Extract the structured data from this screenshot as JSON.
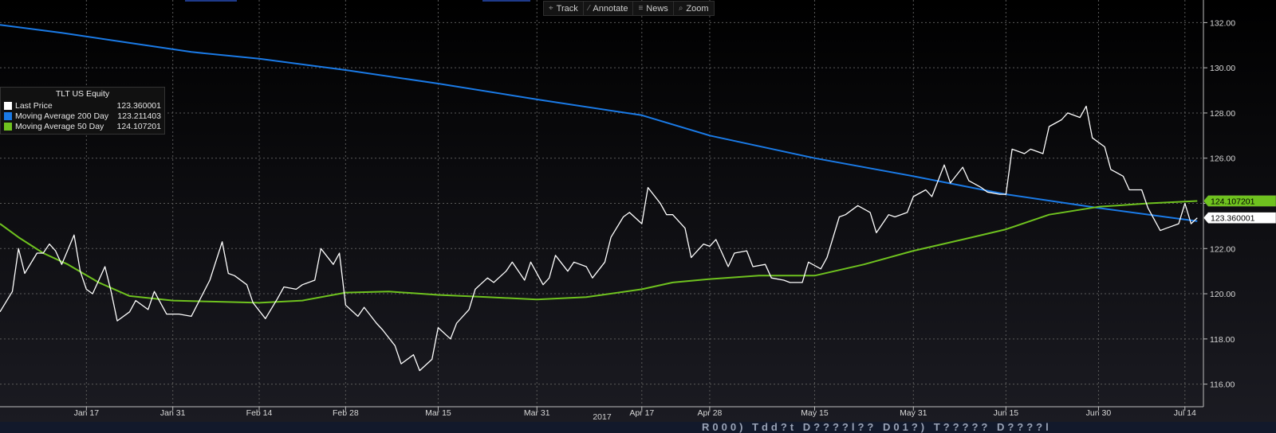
{
  "toolbar": {
    "track": {
      "label": "Track",
      "icon": "crosshair-icon"
    },
    "annotate": {
      "label": "Annotate",
      "icon": "pencil-icon"
    },
    "news": {
      "label": "News",
      "icon": "list-icon"
    },
    "zoom": {
      "label": "Zoom",
      "icon": "magnifier-icon"
    }
  },
  "legend": {
    "title": "TLT US Equity",
    "rows": [
      {
        "name": "Last Price",
        "value": "123.360001",
        "color": "#ffffff"
      },
      {
        "name": "Moving Average 200 Day",
        "value": "123.211403",
        "color": "#1a7ae6"
      },
      {
        "name": "Moving Average 50 Day",
        "value": "124.107201",
        "color": "#6fc21f"
      }
    ]
  },
  "footer_text": "R000) Tdd?t  D????l??  D01?)  T????? D????l",
  "chart_data": {
    "type": "line",
    "title": "TLT US Equity",
    "xlabel": "2017",
    "ylabel": "",
    "ylim": [
      115,
      133
    ],
    "xlim": [
      "2017-01-03",
      "2017-07-17"
    ],
    "y_axis_side": "right",
    "grid": true,
    "legend_placement": "top-left",
    "x_tick_labels": [
      {
        "label": "Jan 17",
        "date": "2017-01-17"
      },
      {
        "label": "Jan 31",
        "date": "2017-01-31"
      },
      {
        "label": "Feb 14",
        "date": "2017-02-14"
      },
      {
        "label": "Feb 28",
        "date": "2017-02-28"
      },
      {
        "label": "Mar 15",
        "date": "2017-03-15"
      },
      {
        "label": "Mar 31",
        "date": "2017-03-31"
      },
      {
        "label": "Apr 17",
        "date": "2017-04-17"
      },
      {
        "label": "Apr 28",
        "date": "2017-04-28"
      },
      {
        "label": "May 15",
        "date": "2017-05-15"
      },
      {
        "label": "May 31",
        "date": "2017-05-31"
      },
      {
        "label": "Jun 15",
        "date": "2017-06-15"
      },
      {
        "label": "Jun 30",
        "date": "2017-06-30"
      },
      {
        "label": "Jul 14",
        "date": "2017-07-14"
      }
    ],
    "y_ticks": [
      "116.00",
      "118.00",
      "120.00",
      "122.00",
      "124.00",
      "126.00",
      "128.00",
      "130.00",
      "132.00"
    ],
    "last_value_tags": [
      {
        "series": "Moving Average 50 Day",
        "label": "124.107201",
        "value": 124.107201,
        "bg": "#6fc21f",
        "fg": "#000000"
      },
      {
        "series": "Last Price",
        "label": "123.360001",
        "value": 123.360001,
        "bg": "#ffffff",
        "fg": "#000000"
      }
    ],
    "series": [
      {
        "name": "Last Price",
        "color": "#ffffff",
        "points": [
          [
            "2017-01-03",
            119.2
          ],
          [
            "2017-01-05",
            120.1
          ],
          [
            "2017-01-06",
            122.0
          ],
          [
            "2017-01-07",
            120.9
          ],
          [
            "2017-01-09",
            121.8
          ],
          [
            "2017-01-10",
            121.8
          ],
          [
            "2017-01-11",
            122.2
          ],
          [
            "2017-01-12",
            121.9
          ],
          [
            "2017-01-13",
            121.3
          ],
          [
            "2017-01-15",
            122.6
          ],
          [
            "2017-01-16",
            121.0
          ],
          [
            "2017-01-17",
            120.2
          ],
          [
            "2017-01-18",
            120.0
          ],
          [
            "2017-01-20",
            121.2
          ],
          [
            "2017-01-21",
            120.1
          ],
          [
            "2017-01-22",
            118.8
          ],
          [
            "2017-01-24",
            119.2
          ],
          [
            "2017-01-25",
            119.7
          ],
          [
            "2017-01-27",
            119.3
          ],
          [
            "2017-01-28",
            120.1
          ],
          [
            "2017-01-30",
            119.1
          ],
          [
            "2017-02-01",
            119.1
          ],
          [
            "2017-02-03",
            119.0
          ],
          [
            "2017-02-06",
            120.6
          ],
          [
            "2017-02-08",
            122.3
          ],
          [
            "2017-02-09",
            120.9
          ],
          [
            "2017-02-10",
            120.8
          ],
          [
            "2017-02-12",
            120.4
          ],
          [
            "2017-02-13",
            119.6
          ],
          [
            "2017-02-15",
            118.9
          ],
          [
            "2017-02-17",
            119.8
          ],
          [
            "2017-02-18",
            120.3
          ],
          [
            "2017-02-20",
            120.2
          ],
          [
            "2017-02-21",
            120.4
          ],
          [
            "2017-02-23",
            120.6
          ],
          [
            "2017-02-24",
            122.0
          ],
          [
            "2017-02-26",
            121.3
          ],
          [
            "2017-02-27",
            121.8
          ],
          [
            "2017-02-28",
            119.5
          ],
          [
            "2017-03-02",
            119.0
          ],
          [
            "2017-03-03",
            119.4
          ],
          [
            "2017-03-05",
            118.7
          ],
          [
            "2017-03-06",
            118.4
          ],
          [
            "2017-03-08",
            117.7
          ],
          [
            "2017-03-09",
            116.9
          ],
          [
            "2017-03-11",
            117.3
          ],
          [
            "2017-03-12",
            116.6
          ],
          [
            "2017-03-14",
            117.1
          ],
          [
            "2017-03-15",
            118.5
          ],
          [
            "2017-03-17",
            118.0
          ],
          [
            "2017-03-18",
            118.7
          ],
          [
            "2017-03-20",
            119.3
          ],
          [
            "2017-03-21",
            120.2
          ],
          [
            "2017-03-23",
            120.7
          ],
          [
            "2017-03-24",
            120.5
          ],
          [
            "2017-03-26",
            121.0
          ],
          [
            "2017-03-27",
            121.4
          ],
          [
            "2017-03-29",
            120.6
          ],
          [
            "2017-03-30",
            121.4
          ],
          [
            "2017-04-01",
            120.4
          ],
          [
            "2017-04-02",
            120.7
          ],
          [
            "2017-04-03",
            121.7
          ],
          [
            "2017-04-05",
            121.0
          ],
          [
            "2017-04-06",
            121.4
          ],
          [
            "2017-04-08",
            121.2
          ],
          [
            "2017-04-09",
            120.7
          ],
          [
            "2017-04-11",
            121.4
          ],
          [
            "2017-04-12",
            122.5
          ],
          [
            "2017-04-14",
            123.4
          ],
          [
            "2017-04-15",
            123.6
          ],
          [
            "2017-04-17",
            123.1
          ],
          [
            "2017-04-18",
            124.7
          ],
          [
            "2017-04-20",
            124.0
          ],
          [
            "2017-04-21",
            123.5
          ],
          [
            "2017-04-22",
            123.5
          ],
          [
            "2017-04-24",
            122.9
          ],
          [
            "2017-04-25",
            121.6
          ],
          [
            "2017-04-27",
            122.2
          ],
          [
            "2017-04-28",
            122.1
          ],
          [
            "2017-04-29",
            122.4
          ],
          [
            "2017-05-01",
            121.2
          ],
          [
            "2017-05-02",
            121.8
          ],
          [
            "2017-05-04",
            121.9
          ],
          [
            "2017-05-05",
            121.2
          ],
          [
            "2017-05-07",
            121.3
          ],
          [
            "2017-05-08",
            120.7
          ],
          [
            "2017-05-10",
            120.6
          ],
          [
            "2017-05-11",
            120.5
          ],
          [
            "2017-05-13",
            120.5
          ],
          [
            "2017-05-14",
            121.4
          ],
          [
            "2017-05-16",
            121.1
          ],
          [
            "2017-05-17",
            121.6
          ],
          [
            "2017-05-19",
            123.4
          ],
          [
            "2017-05-20",
            123.5
          ],
          [
            "2017-05-22",
            123.9
          ],
          [
            "2017-05-24",
            123.6
          ],
          [
            "2017-05-25",
            122.7
          ],
          [
            "2017-05-27",
            123.5
          ],
          [
            "2017-05-28",
            123.4
          ],
          [
            "2017-05-30",
            123.6
          ],
          [
            "2017-05-31",
            124.3
          ],
          [
            "2017-06-02",
            124.6
          ],
          [
            "2017-06-03",
            124.3
          ],
          [
            "2017-06-05",
            125.7
          ],
          [
            "2017-06-06",
            124.9
          ],
          [
            "2017-06-08",
            125.6
          ],
          [
            "2017-06-09",
            125.0
          ],
          [
            "2017-06-11",
            124.7
          ],
          [
            "2017-06-12",
            124.5
          ],
          [
            "2017-06-14",
            124.4
          ],
          [
            "2017-06-15",
            124.4
          ],
          [
            "2017-06-16",
            126.4
          ],
          [
            "2017-06-18",
            126.2
          ],
          [
            "2017-06-19",
            126.4
          ],
          [
            "2017-06-21",
            126.2
          ],
          [
            "2017-06-22",
            127.4
          ],
          [
            "2017-06-24",
            127.7
          ],
          [
            "2017-06-25",
            128.0
          ],
          [
            "2017-06-27",
            127.8
          ],
          [
            "2017-06-28",
            128.3
          ],
          [
            "2017-06-29",
            126.9
          ],
          [
            "2017-07-01",
            126.5
          ],
          [
            "2017-07-02",
            125.5
          ],
          [
            "2017-07-04",
            125.2
          ],
          [
            "2017-07-05",
            124.6
          ],
          [
            "2017-07-07",
            124.6
          ],
          [
            "2017-07-08",
            123.8
          ],
          [
            "2017-07-10",
            122.8
          ],
          [
            "2017-07-11",
            122.9
          ],
          [
            "2017-07-13",
            123.1
          ],
          [
            "2017-07-14",
            124.0
          ],
          [
            "2017-07-15",
            123.1
          ],
          [
            "2017-07-16",
            123.36
          ]
        ]
      },
      {
        "name": "Moving Average 200 Day",
        "color": "#1a7ae6",
        "points": [
          [
            "2017-01-03",
            131.9
          ],
          [
            "2017-01-13",
            131.55
          ],
          [
            "2017-01-24",
            131.1
          ],
          [
            "2017-02-03",
            130.7
          ],
          [
            "2017-02-14",
            130.4
          ],
          [
            "2017-02-28",
            129.9
          ],
          [
            "2017-03-15",
            129.3
          ],
          [
            "2017-03-31",
            128.6
          ],
          [
            "2017-04-17",
            127.9
          ],
          [
            "2017-04-28",
            127.0
          ],
          [
            "2017-05-15",
            126.0
          ],
          [
            "2017-05-31",
            125.2
          ],
          [
            "2017-06-15",
            124.4
          ],
          [
            "2017-06-30",
            123.8
          ],
          [
            "2017-07-16",
            123.21
          ]
        ]
      },
      {
        "name": "Moving Average 50 Day",
        "color": "#6fc21f",
        "points": [
          [
            "2017-01-03",
            123.1
          ],
          [
            "2017-01-06",
            122.5
          ],
          [
            "2017-01-10",
            121.8
          ],
          [
            "2017-01-14",
            121.3
          ],
          [
            "2017-01-19",
            120.5
          ],
          [
            "2017-01-24",
            119.9
          ],
          [
            "2017-01-31",
            119.7
          ],
          [
            "2017-02-07",
            119.65
          ],
          [
            "2017-02-14",
            119.6
          ],
          [
            "2017-02-21",
            119.7
          ],
          [
            "2017-02-28",
            120.05
          ],
          [
            "2017-03-07",
            120.1
          ],
          [
            "2017-03-15",
            119.95
          ],
          [
            "2017-03-23",
            119.85
          ],
          [
            "2017-03-31",
            119.75
          ],
          [
            "2017-04-08",
            119.85
          ],
          [
            "2017-04-17",
            120.2
          ],
          [
            "2017-04-22",
            120.5
          ],
          [
            "2017-04-28",
            120.65
          ],
          [
            "2017-05-06",
            120.8
          ],
          [
            "2017-05-15",
            120.8
          ],
          [
            "2017-05-23",
            121.3
          ],
          [
            "2017-05-31",
            121.9
          ],
          [
            "2017-06-08",
            122.4
          ],
          [
            "2017-06-15",
            122.85
          ],
          [
            "2017-06-22",
            123.5
          ],
          [
            "2017-06-30",
            123.85
          ],
          [
            "2017-07-08",
            124.0
          ],
          [
            "2017-07-16",
            124.107201
          ]
        ]
      }
    ]
  }
}
